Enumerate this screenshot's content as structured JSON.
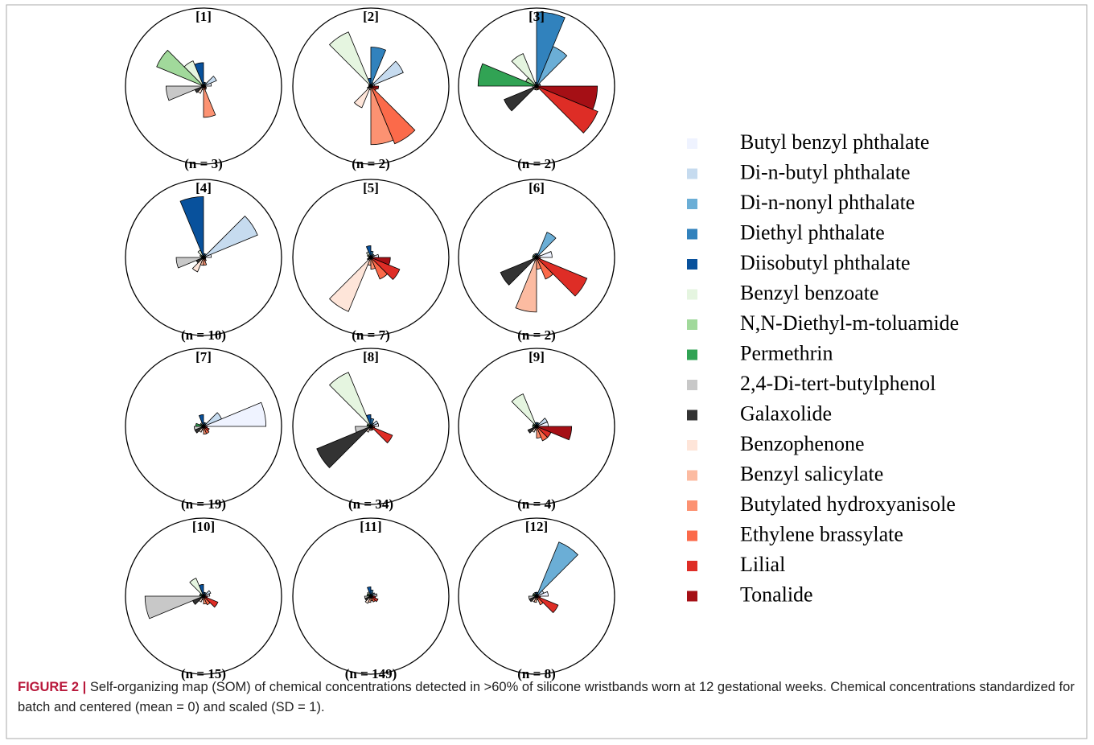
{
  "chart_data": {
    "type": "som-segments",
    "series": [
      {
        "name": "Butyl benzyl phthalate",
        "color": "#eff3ff"
      },
      {
        "name": "Di-n-butyl phthalate",
        "color": "#c6dbef"
      },
      {
        "name": "Di-n-nonyl phthalate",
        "color": "#6baed6"
      },
      {
        "name": "Diethyl phthalate",
        "color": "#3182bd"
      },
      {
        "name": "Diisobutyl phthalate",
        "color": "#08519c"
      },
      {
        "name": "Benzyl benzoate",
        "color": "#e5f5e0"
      },
      {
        "name": "N,N-Diethyl-m-toluamide",
        "color": "#a1d99b"
      },
      {
        "name": "Permethrin",
        "color": "#31a354"
      },
      {
        "name": "2,4-Di-tert-butylphenol",
        "color": "#c8c8c8"
      },
      {
        "name": "Galaxolide",
        "color": "#333333"
      },
      {
        "name": "Benzophenone",
        "color": "#fee5d9"
      },
      {
        "name": "Benzyl salicylate",
        "color": "#fcbba1"
      },
      {
        "name": "Butylated hydroxyanisole",
        "color": "#fc9272"
      },
      {
        "name": "Ethylene brassylate",
        "color": "#fb6a4a"
      },
      {
        "name": "Lilial",
        "color": "#de2d26"
      },
      {
        "name": "Tonalide",
        "color": "#a50f15"
      }
    ],
    "nodes": [
      {
        "label": "[1]",
        "n_label": "(n = 3)",
        "values": [
          0.1,
          0.18,
          0.05,
          0.05,
          0.3,
          0.35,
          0.65,
          0.03,
          0.48,
          0.12,
          0.1,
          0.05,
          0.4,
          0.05,
          0.04,
          0.03
        ]
      },
      {
        "label": "[2]",
        "n_label": "(n = 2)",
        "values": [
          0.05,
          0.45,
          0.05,
          0.5,
          0.1,
          0.75,
          0.03,
          0.02,
          0.03,
          0.05,
          0.3,
          0.05,
          0.75,
          0.8,
          0.08,
          0.1
        ]
      },
      {
        "label": "[3]",
        "n_label": "(n = 2)",
        "values": [
          0.05,
          0.05,
          0.55,
          0.95,
          0.05,
          0.45,
          0.15,
          0.75,
          0.05,
          0.45,
          0.05,
          0.05,
          0.05,
          0.05,
          0.85,
          0.78
        ]
      },
      {
        "label": "[4]",
        "n_label": "(n = 10)",
        "values": [
          0.1,
          0.75,
          0.05,
          0.05,
          0.78,
          0.1,
          0.05,
          0.03,
          0.35,
          0.1,
          0.2,
          0.1,
          0.1,
          0.05,
          0.03,
          0.03
        ]
      },
      {
        "label": "[5]",
        "n_label": "(n = 7)",
        "values": [
          0.1,
          0.05,
          0.05,
          0.08,
          0.15,
          0.08,
          0.05,
          0.03,
          0.03,
          0.05,
          0.75,
          0.1,
          0.15,
          0.3,
          0.4,
          0.25
        ]
      },
      {
        "label": "[6]",
        "n_label": "(n = 2)",
        "values": [
          0.2,
          0.05,
          0.35,
          0.05,
          0.05,
          0.05,
          0.05,
          0.05,
          0.05,
          0.5,
          0.05,
          0.7,
          0.15,
          0.3,
          0.7,
          0.05
        ]
      },
      {
        "label": "[7]",
        "n_label": "(n = 19)",
        "values": [
          0.8,
          0.25,
          0.05,
          0.05,
          0.15,
          0.05,
          0.05,
          0.1,
          0.12,
          0.12,
          0.08,
          0.05,
          0.1,
          0.1,
          0.08,
          0.05
        ]
      },
      {
        "label": "[8]",
        "n_label": "(n = 34)",
        "values": [
          0.1,
          0.1,
          0.05,
          0.1,
          0.15,
          0.75,
          0.05,
          0.05,
          0.2,
          0.75,
          0.08,
          0.05,
          0.05,
          0.05,
          0.3,
          0.05
        ]
      },
      {
        "label": "[9]",
        "n_label": "(n = 4)",
        "values": [
          0.15,
          0.15,
          0.05,
          0.05,
          0.05,
          0.45,
          0.05,
          0.05,
          0.05,
          0.12,
          0.08,
          0.05,
          0.15,
          0.2,
          0.2,
          0.45
        ]
      },
      {
        "label": "[10]",
        "n_label": "(n = 15)",
        "values": [
          0.08,
          0.1,
          0.05,
          0.05,
          0.15,
          0.25,
          0.05,
          0.05,
          0.75,
          0.15,
          0.08,
          0.05,
          0.1,
          0.12,
          0.2,
          0.05
        ]
      },
      {
        "label": "[11]",
        "n_label": "(n = 149)",
        "values": [
          0.08,
          0.06,
          0.05,
          0.08,
          0.12,
          0.06,
          0.05,
          0.05,
          0.08,
          0.08,
          0.1,
          0.08,
          0.06,
          0.08,
          0.1,
          0.06
        ]
      },
      {
        "label": "[12]",
        "n_label": "(n = 8)",
        "values": [
          0.15,
          0.1,
          0.75,
          0.05,
          0.05,
          0.05,
          0.05,
          0.05,
          0.1,
          0.1,
          0.08,
          0.08,
          0.05,
          0.12,
          0.3,
          0.05
        ]
      }
    ]
  },
  "caption": {
    "label": "FIGURE 2 |",
    "text": "Self-organizing map (SOM) of chemical concentrations detected in >60% of silicone wristbands worn at 12 gestational weeks. Chemical concentrations standardized for batch and centered (mean = 0) and scaled (SD = 1)."
  }
}
